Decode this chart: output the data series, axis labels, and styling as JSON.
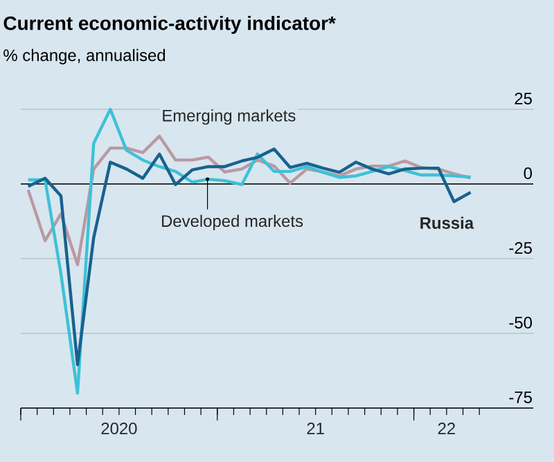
{
  "chart_data": {
    "type": "line",
    "title": "Current economic-activity indicator*",
    "subtitle": "% change, annualised",
    "x": [
      "2020-01-15",
      "2020-02-15",
      "2020-03-15",
      "2020-04-15",
      "2020-05-15",
      "2020-06-15",
      "2020-07-15",
      "2020-08-15",
      "2020-09-15",
      "2020-10-15",
      "2020-11-15",
      "2020-12-15",
      "2021-01-15",
      "2021-02-15",
      "2021-03-15",
      "2021-04-15",
      "2021-05-15",
      "2021-06-15",
      "2021-07-15",
      "2021-08-15",
      "2021-09-15",
      "2021-10-15",
      "2021-11-15",
      "2021-12-15",
      "2022-01-15",
      "2022-02-15",
      "2022-03-15",
      "2022-04-15"
    ],
    "series": [
      {
        "name": "Emerging markets",
        "color": "#b89aa3",
        "values": [
          -2,
          -19,
          -10,
          -27,
          5,
          12,
          12,
          10.5,
          16,
          8,
          8,
          9,
          4,
          5,
          8,
          6,
          0.3,
          5,
          4,
          2.7,
          5,
          6,
          6,
          7.7,
          5.5,
          5,
          3.4,
          2
        ]
      },
      {
        "name": "Developed markets",
        "color": "#3fc1d6",
        "values": [
          1.4,
          1.4,
          -30,
          -70,
          13.6,
          25,
          11.3,
          8,
          5.8,
          4.2,
          0.6,
          1.6,
          1.1,
          -0.2,
          10,
          4.2,
          4.2,
          5.8,
          3.9,
          2.2,
          2.7,
          4.2,
          5.8,
          4.5,
          3,
          3,
          2.7,
          2.3
        ]
      },
      {
        "name": "Russia",
        "color": "#17628f",
        "values": [
          -0.8,
          1.9,
          -4,
          -60.5,
          -18,
          7.3,
          5,
          1.9,
          10,
          -0.2,
          4.7,
          5.8,
          5.8,
          7.7,
          8.9,
          11.7,
          5.5,
          6.9,
          5.3,
          3.9,
          7.3,
          5,
          3.4,
          5,
          5.3,
          5.3,
          -5.9,
          -2.8
        ]
      }
    ],
    "xlim": [
      "2020-01-01",
      "2022-08-10"
    ],
    "ylim": [
      -75,
      25
    ],
    "xticks": [
      {
        "value": "2020-01",
        "label": null
      },
      {
        "value": "2020-02",
        "label": null
      },
      {
        "value": "2020-03",
        "label": null
      },
      {
        "value": "2020-04",
        "label": null
      },
      {
        "value": "2020-05",
        "label": null
      },
      {
        "value": "2020-06",
        "label": null
      },
      {
        "value": "2020-07",
        "label": "2020"
      },
      {
        "value": "2020-08",
        "label": null
      },
      {
        "value": "2020-09",
        "label": null
      },
      {
        "value": "2020-10",
        "label": null
      },
      {
        "value": "2020-11",
        "label": null
      },
      {
        "value": "2020-12",
        "label": null
      },
      {
        "value": "2021-01",
        "label": null
      },
      {
        "value": "2021-02",
        "label": null
      },
      {
        "value": "2021-03",
        "label": null
      },
      {
        "value": "2021-04",
        "label": null
      },
      {
        "value": "2021-05",
        "label": null
      },
      {
        "value": "2021-06",
        "label": null
      },
      {
        "value": "2021-07",
        "label": "21"
      },
      {
        "value": "2021-08",
        "label": null
      },
      {
        "value": "2021-09",
        "label": null
      },
      {
        "value": "2021-10",
        "label": null
      },
      {
        "value": "2021-11",
        "label": null
      },
      {
        "value": "2021-12",
        "label": null
      },
      {
        "value": "2022-01",
        "label": null
      },
      {
        "value": "2022-02",
        "label": null
      },
      {
        "value": "2022-03",
        "label": "22"
      },
      {
        "value": "2022-04",
        "label": null
      },
      {
        "value": "2022-05",
        "label": null
      }
    ],
    "yticks": [
      -75,
      -50,
      -25,
      0,
      25
    ],
    "grid": "y",
    "line_style": "solid",
    "marker": "none"
  }
}
